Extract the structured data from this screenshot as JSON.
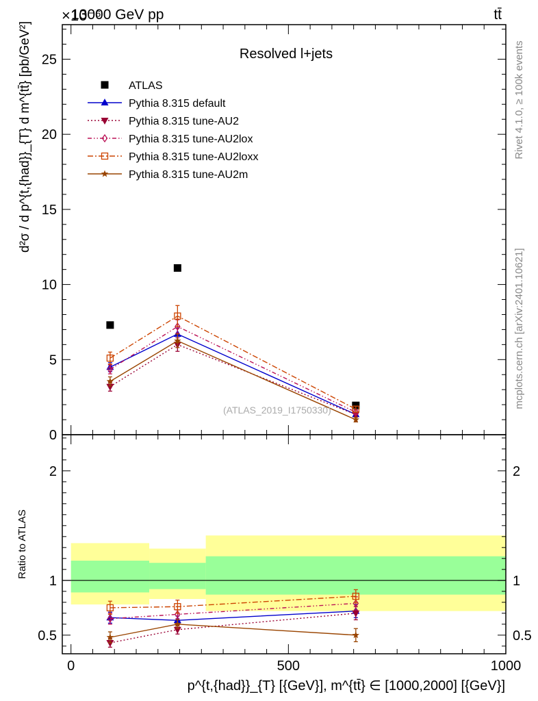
{
  "header": {
    "energy_label": "13000 GeV pp",
    "process_label": "tt̄",
    "exponent_label": "×10⁻⁶"
  },
  "side": {
    "rivet_label": "Rivet 4.1.0, ≥ 100k events",
    "site_label": "mcplots.cern.ch [arXiv:2401.10621]"
  },
  "chart_data": [
    {
      "type": "line",
      "title": "Resolved l+jets",
      "watermark": "(ATLAS_2019_I1750330)",
      "ylabel": "d²σ / d p^{t,{had}}_{T} d m^{tt̄} [pb/GeV²]",
      "xlabel": "p^{t,{had}}_{T} [{GeV}], m^{tt̄} ∈ [1000,2000] [{GeV}]",
      "x_range": [
        -20,
        1000
      ],
      "y_range": [
        0,
        27.3
      ],
      "y_ticks": [
        0,
        5,
        10,
        15,
        20,
        25
      ],
      "y_tick_labels": [
        "0",
        "5",
        "10",
        "15",
        "20",
        "25"
      ],
      "y_scale_note": "values ×10⁻⁶",
      "legend_position": "top-left",
      "x": [
        90,
        245,
        655
      ],
      "series": [
        {
          "name": "ATLAS",
          "color": "#000000",
          "marker": "square",
          "dash": "none",
          "values": [
            7.3,
            11.1,
            1.95
          ],
          "errors": [
            0.0,
            0.0,
            0.0
          ]
        },
        {
          "name": "Pythia 8.315 default",
          "color": "#0000cc",
          "marker": "triangle-up",
          "dash": "solid",
          "values": [
            4.5,
            6.7,
            1.35
          ],
          "errors": [
            0.3,
            0.4,
            0.15
          ]
        },
        {
          "name": "Pythia 8.315 tune-AU2",
          "color": "#990033",
          "marker": "triangle-down",
          "dash": "2,3",
          "values": [
            3.2,
            6.0,
            1.35
          ],
          "errors": [
            0.3,
            0.45,
            0.15
          ]
        },
        {
          "name": "Pythia 8.315 tune-AU2lox",
          "color": "#bb1155",
          "marker": "diamond-open",
          "dash": "6,3,1.5,3,1.5,3",
          "values": [
            4.35,
            7.2,
            1.5
          ],
          "errors": [
            0.3,
            0.45,
            0.15
          ]
        },
        {
          "name": "Pythia 8.315 tune-AU2loxx",
          "color": "#cc4400",
          "marker": "square-open",
          "dash": "8,3,2,3",
          "values": [
            5.1,
            7.9,
            1.7
          ],
          "errors": [
            0.4,
            0.7,
            0.2
          ]
        },
        {
          "name": "Pythia 8.315 tune-AU2m",
          "color": "#994400",
          "marker": "star",
          "dash": "solid",
          "values": [
            3.55,
            6.25,
            1.0
          ],
          "errors": [
            0.3,
            0.45,
            0.15
          ]
        }
      ]
    },
    {
      "type": "line",
      "title": "",
      "ylabel": "Ratio to ATLAS",
      "x_range": [
        -20,
        1000
      ],
      "y_range": [
        0.33,
        2.33
      ],
      "y_ticks": [
        0.5,
        1,
        2
      ],
      "y_tick_labels": [
        "0.5",
        "1",
        "2"
      ],
      "x_ticks": [
        0,
        500,
        1000
      ],
      "x_tick_labels": [
        "0",
        "500",
        "1000"
      ],
      "reference_line": 1.0,
      "bands": [
        {
          "x_low": 0,
          "x_high": 180,
          "yellow": [
            0.78,
            1.34
          ],
          "green": [
            0.89,
            1.18
          ]
        },
        {
          "x_low": 180,
          "x_high": 310,
          "yellow": [
            0.83,
            1.29
          ],
          "green": [
            0.92,
            1.16
          ]
        },
        {
          "x_low": 310,
          "x_high": 1000,
          "yellow": [
            0.72,
            1.41
          ],
          "green": [
            0.87,
            1.22
          ]
        }
      ],
      "x": [
        90,
        245,
        655
      ],
      "series": [
        {
          "name": "Pythia 8.315 default",
          "color": "#0000cc",
          "marker": "triangle-up",
          "dash": "solid",
          "values": [
            0.66,
            0.635,
            0.72
          ],
          "errors": [
            0.05,
            0.04,
            0.06
          ]
        },
        {
          "name": "Pythia 8.315 tune-AU2",
          "color": "#990033",
          "marker": "triangle-down",
          "dash": "2,3",
          "values": [
            0.43,
            0.55,
            0.7
          ],
          "errors": [
            0.04,
            0.04,
            0.06
          ]
        },
        {
          "name": "Pythia 8.315 tune-AU2lox",
          "color": "#bb1155",
          "marker": "diamond-open",
          "dash": "6,3,1.5,3,1.5,3",
          "values": [
            0.65,
            0.69,
            0.79
          ],
          "errors": [
            0.05,
            0.04,
            0.06
          ]
        },
        {
          "name": "Pythia 8.315 tune-AU2loxx",
          "color": "#cc4400",
          "marker": "square-open",
          "dash": "8,3,2,3",
          "values": [
            0.75,
            0.76,
            0.855
          ],
          "errors": [
            0.06,
            0.06,
            0.06
          ]
        },
        {
          "name": "Pythia 8.315 tune-AU2m",
          "color": "#994400",
          "marker": "star",
          "dash": "solid",
          "values": [
            0.48,
            0.6,
            0.5
          ],
          "errors": [
            0.05,
            0.04,
            0.06
          ]
        }
      ]
    }
  ]
}
